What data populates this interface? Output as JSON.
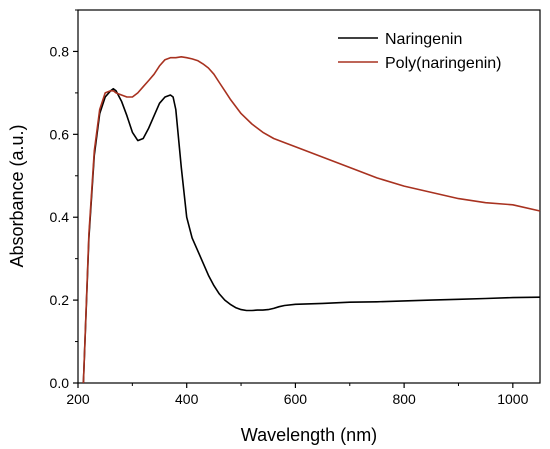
{
  "chart_data": {
    "type": "line",
    "title": "",
    "xlabel": "Wavelength (nm)",
    "ylabel": "Absorbance (a.u.)",
    "xlim": [
      200,
      1050
    ],
    "ylim": [
      0.0,
      0.9
    ],
    "xticks": [
      200,
      400,
      600,
      800,
      1000
    ],
    "xtick_labels": [
      "200",
      "400",
      "600",
      "800",
      "1000"
    ],
    "yticks": [
      0.0,
      0.2,
      0.4,
      0.6,
      0.8
    ],
    "ytick_labels": [
      "0.0",
      "0.2",
      "0.4",
      "0.6",
      "0.8"
    ],
    "grid": false,
    "legend_position": "top-right",
    "series": [
      {
        "name": "Naringenin",
        "color": "#000000",
        "x": [
          210,
          220,
          230,
          240,
          250,
          260,
          265,
          270,
          280,
          290,
          300,
          310,
          320,
          330,
          340,
          350,
          360,
          370,
          375,
          380,
          390,
          400,
          410,
          420,
          430,
          440,
          450,
          460,
          470,
          480,
          490,
          500,
          510,
          520,
          530,
          540,
          550,
          560,
          570,
          580,
          600,
          650,
          700,
          750,
          800,
          850,
          900,
          950,
          1000,
          1050
        ],
        "y": [
          0.0,
          0.35,
          0.55,
          0.65,
          0.69,
          0.705,
          0.71,
          0.705,
          0.68,
          0.645,
          0.605,
          0.585,
          0.59,
          0.615,
          0.645,
          0.675,
          0.69,
          0.695,
          0.69,
          0.66,
          0.52,
          0.4,
          0.35,
          0.32,
          0.29,
          0.26,
          0.235,
          0.215,
          0.2,
          0.19,
          0.182,
          0.177,
          0.175,
          0.175,
          0.176,
          0.176,
          0.177,
          0.18,
          0.184,
          0.187,
          0.19,
          0.192,
          0.195,
          0.196,
          0.198,
          0.2,
          0.202,
          0.204,
          0.206,
          0.207
        ]
      },
      {
        "name": "Poly(naringenin)",
        "color": "#a83220",
        "x": [
          210,
          220,
          230,
          240,
          250,
          260,
          265,
          270,
          280,
          290,
          300,
          310,
          320,
          330,
          340,
          350,
          360,
          370,
          380,
          390,
          400,
          410,
          420,
          430,
          440,
          450,
          460,
          470,
          480,
          500,
          520,
          540,
          560,
          580,
          600,
          650,
          700,
          750,
          800,
          850,
          900,
          950,
          1000,
          1050
        ],
        "y": [
          0.0,
          0.36,
          0.56,
          0.66,
          0.7,
          0.705,
          0.705,
          0.7,
          0.695,
          0.69,
          0.69,
          0.7,
          0.715,
          0.73,
          0.745,
          0.765,
          0.78,
          0.785,
          0.785,
          0.787,
          0.785,
          0.782,
          0.778,
          0.77,
          0.76,
          0.745,
          0.725,
          0.705,
          0.685,
          0.65,
          0.625,
          0.605,
          0.59,
          0.58,
          0.57,
          0.545,
          0.52,
          0.495,
          0.475,
          0.46,
          0.445,
          0.435,
          0.43,
          0.415
        ]
      }
    ]
  }
}
